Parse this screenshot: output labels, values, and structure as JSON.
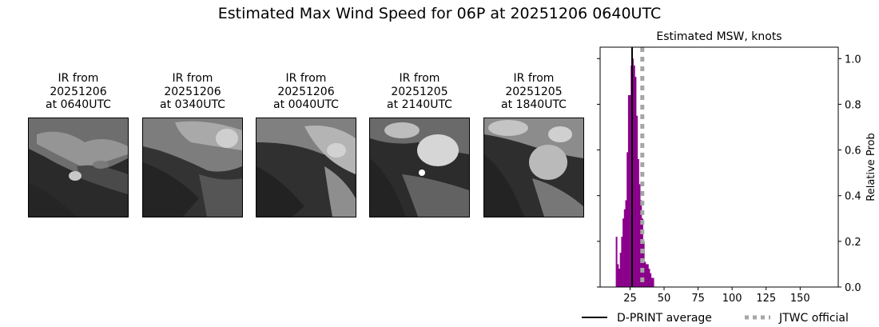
{
  "title": "Estimated Max Wind Speed for 06P at 20251206 0640UTC",
  "ir_panels": [
    {
      "line1": "IR from",
      "line2": "20251206",
      "line3": "at 0640UTC"
    },
    {
      "line1": "IR from",
      "line2": "20251206",
      "line3": "at 0340UTC"
    },
    {
      "line1": "IR from",
      "line2": "20251206",
      "line3": "at 0040UTC"
    },
    {
      "line1": "IR from",
      "line2": "20251205",
      "line3": "at 2140UTC"
    },
    {
      "line1": "IR from",
      "line2": "20251205",
      "line3": "at 1840UTC"
    }
  ],
  "chart_data": {
    "type": "bar",
    "title": "Estimated MSW, knots",
    "xlabel": "",
    "ylabel": "Relative Prob",
    "xlim": [
      3,
      178
    ],
    "ylim": [
      0,
      1.05
    ],
    "xticks": [
      25,
      50,
      75,
      100,
      125,
      150
    ],
    "yticks": [
      0.0,
      0.2,
      0.4,
      0.6,
      0.8,
      1.0
    ],
    "ytick_labels": [
      "0.0",
      "0.2",
      "0.4",
      "0.6",
      "0.8",
      "1.0"
    ],
    "y_axis_side": "right",
    "bar_color": "#8b008b",
    "bars": [
      {
        "x": 15,
        "y": 0.22
      },
      {
        "x": 16,
        "y": 0.1
      },
      {
        "x": 17,
        "y": 0.08
      },
      {
        "x": 18,
        "y": 0.15
      },
      {
        "x": 19,
        "y": 0.22
      },
      {
        "x": 20,
        "y": 0.3
      },
      {
        "x": 21,
        "y": 0.34
      },
      {
        "x": 22,
        "y": 0.38
      },
      {
        "x": 23,
        "y": 0.59
      },
      {
        "x": 24,
        "y": 0.84
      },
      {
        "x": 25,
        "y": 0.84
      },
      {
        "x": 26,
        "y": 0.97
      },
      {
        "x": 27,
        "y": 1.0
      },
      {
        "x": 28,
        "y": 0.97
      },
      {
        "x": 29,
        "y": 0.92
      },
      {
        "x": 30,
        "y": 0.75
      },
      {
        "x": 31,
        "y": 0.56
      },
      {
        "x": 32,
        "y": 0.45
      },
      {
        "x": 33,
        "y": 0.38
      },
      {
        "x": 34,
        "y": 0.3
      },
      {
        "x": 35,
        "y": 0.2
      },
      {
        "x": 36,
        "y": 0.11
      },
      {
        "x": 37,
        "y": 0.1
      },
      {
        "x": 38,
        "y": 0.1
      },
      {
        "x": 39,
        "y": 0.08
      },
      {
        "x": 40,
        "y": 0.06
      },
      {
        "x": 41,
        "y": 0.04
      },
      {
        "x": 42,
        "y": 0.04
      }
    ],
    "dprint_average": 26.5,
    "jtwc_official": 34,
    "legend": {
      "position": "bottom",
      "dprint_label": "D-PRINT average",
      "jtwc_label": "JTWC official",
      "dprint_color": "#000000",
      "jtwc_color": "#a6a6a6"
    }
  }
}
